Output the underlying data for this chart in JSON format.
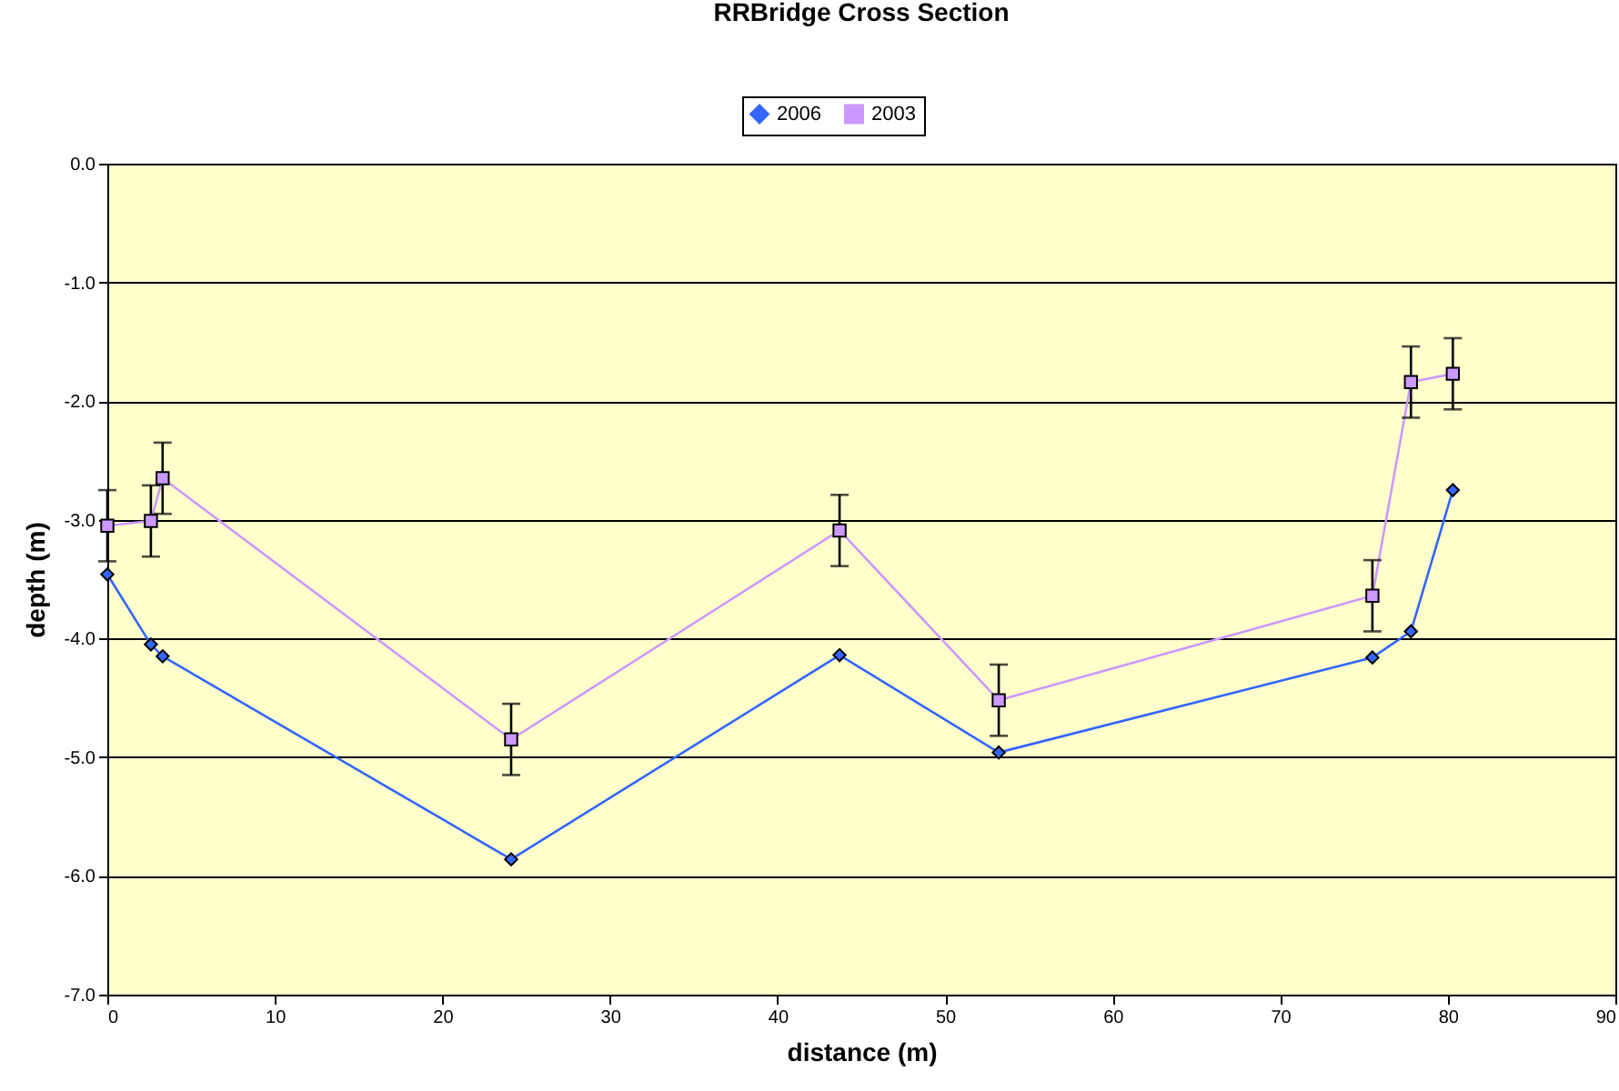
{
  "chart_data": {
    "type": "line",
    "title": "RRBridge Cross Section",
    "xlabel": "distance (m)",
    "ylabel": "depth (m)",
    "x": [
      0,
      2.6,
      3.3,
      24.1,
      43.7,
      53.2,
      75.5,
      77.8,
      80.3
    ],
    "series": [
      {
        "name": "2006",
        "color": "#3366ff",
        "marker": "diamond",
        "values": [
          -3.46,
          -4.05,
          -4.15,
          -5.86,
          -4.14,
          -4.96,
          -4.16,
          -3.94,
          -2.75
        ]
      },
      {
        "name": "2003",
        "color": "#cc99ff",
        "marker": "square",
        "values": [
          -3.05,
          -3.01,
          -2.65,
          -4.85,
          -3.09,
          -4.52,
          -3.64,
          -1.84,
          -1.77
        ],
        "errors": [
          0.3,
          0.3,
          0.3,
          0.3,
          0.3,
          0.3,
          0.3,
          0.3,
          0.3
        ]
      }
    ],
    "xlim": [
      0,
      90
    ],
    "xticks": [
      0,
      10,
      20,
      30,
      40,
      50,
      60,
      70,
      80,
      90
    ],
    "ylim": [
      -7,
      0
    ],
    "yticks": [
      {
        "value": -7,
        "label": "-7.0"
      },
      {
        "value": -6,
        "label": "-6.0"
      },
      {
        "value": -5,
        "label": "-5.0"
      },
      {
        "value": -4,
        "label": "-4.0"
      },
      {
        "value": -3,
        "label": "-3.0"
      },
      {
        "value": -2,
        "label": "-2.0"
      },
      {
        "value": -1,
        "label": "-1.0"
      },
      {
        "value": 0,
        "label": "0.0"
      }
    ],
    "grid": "y",
    "legend": "top"
  }
}
